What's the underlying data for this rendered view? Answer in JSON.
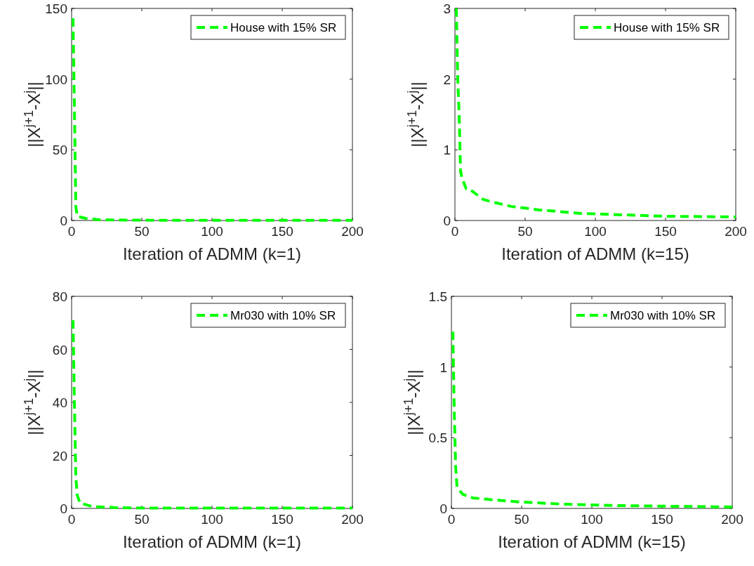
{
  "chart_data": [
    {
      "type": "line",
      "xlabel": "Iteration of ADMM (k=1)",
      "ylabel": "||X$^{j+1}$-X$^{j}$||",
      "x": [
        1,
        2,
        3,
        4,
        6,
        10,
        20,
        50,
        100,
        150,
        200
      ],
      "series": [
        {
          "name": "House with 15% SR",
          "color": "#00ff00",
          "values": [
            143,
            80,
            10,
            3,
            2.5,
            1.5,
            0.5,
            0.2,
            0.1,
            0.1,
            0.1
          ]
        }
      ],
      "xlim": [
        0,
        200
      ],
      "xticks": [
        0,
        50,
        100,
        150,
        200
      ],
      "ylim": [
        0,
        150
      ],
      "yticks": [
        0,
        50,
        100,
        150
      ],
      "grid": false,
      "legend": "top right",
      "line_style": "dashed"
    },
    {
      "type": "line",
      "xlabel": "Iteration of ADMM (k=15)",
      "ylabel": "||X$^{j+1}$-X$^{j}$||",
      "x": [
        1,
        2,
        3,
        4,
        5,
        8,
        10,
        20,
        25,
        40,
        60,
        90,
        120,
        150,
        200
      ],
      "series": [
        {
          "name": "House with 15% SR",
          "color": "#00ff00",
          "values": [
            3,
            2,
            1.5,
            0.7,
            0.6,
            0.45,
            0.45,
            0.3,
            0.27,
            0.2,
            0.15,
            0.1,
            0.08,
            0.06,
            0.05
          ]
        }
      ],
      "xlim": [
        0,
        200
      ],
      "xticks": [
        0,
        50,
        100,
        150,
        200
      ],
      "ylim": [
        0,
        3
      ],
      "yticks": [
        0,
        1,
        2,
        3
      ],
      "grid": false,
      "legend": "top right",
      "line_style": "dashed"
    },
    {
      "type": "line",
      "xlabel": "Iteration of ADMM (k=1)",
      "ylabel": "||X$^{j+1}$-X$^{j}$||",
      "x": [
        1,
        2,
        3,
        4,
        6,
        15,
        30,
        60,
        100,
        150,
        200
      ],
      "series": [
        {
          "name": "Mr030 with 10% SR",
          "color": "#00ff00",
          "values": [
            71,
            40,
            12,
            5,
            2,
            0.7,
            0.3,
            0.1,
            0.1,
            0.1,
            0.1
          ]
        }
      ],
      "xlim": [
        0,
        200
      ],
      "xticks": [
        0,
        50,
        100,
        150,
        200
      ],
      "ylim": [
        0,
        80
      ],
      "yticks": [
        0,
        20,
        40,
        60,
        80
      ],
      "grid": false,
      "legend": "top right",
      "line_style": "dashed"
    },
    {
      "type": "line",
      "xlabel": "Iteration of ADMM (k=15)",
      "ylabel": "||X$^{j+1}$-X$^{j}$||",
      "x": [
        1,
        2,
        3,
        4,
        8,
        15,
        30,
        50,
        80,
        120,
        160,
        200
      ],
      "series": [
        {
          "name": "Mr030 with 10% SR",
          "color": "#00ff00",
          "values": [
            1.25,
            0.7,
            0.3,
            0.15,
            0.1,
            0.075,
            0.06,
            0.045,
            0.03,
            0.02,
            0.015,
            0.01
          ]
        }
      ],
      "xlim": [
        0,
        200
      ],
      "xticks": [
        0,
        50,
        100,
        150,
        200
      ],
      "ylim": [
        0,
        1.5
      ],
      "yticks": [
        0,
        0.5,
        1,
        1.5
      ],
      "grid": false,
      "legend": "top right",
      "line_style": "dashed"
    }
  ]
}
